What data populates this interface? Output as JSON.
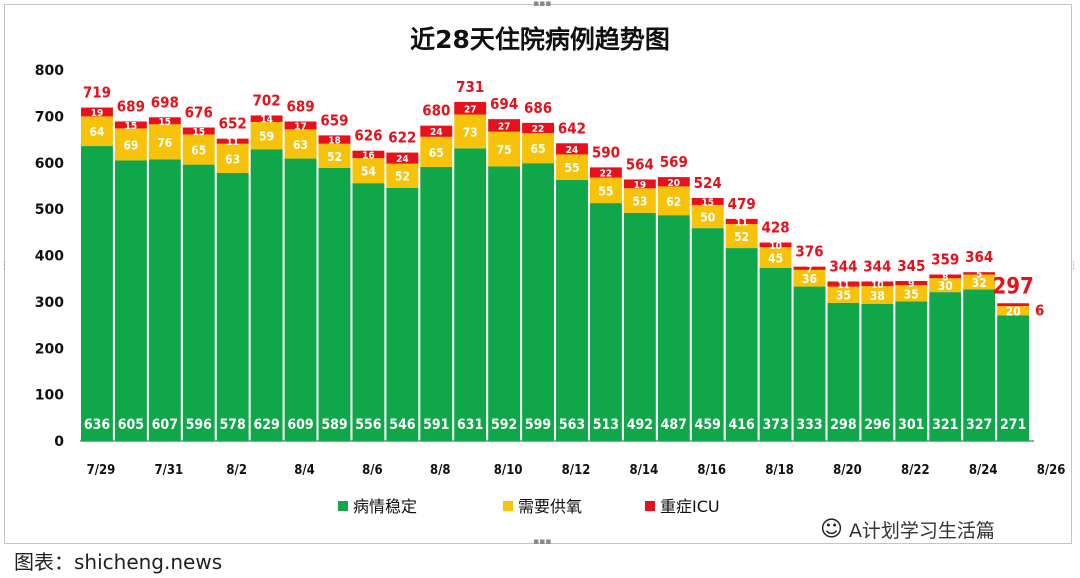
{
  "chart_data": {
    "type": "bar",
    "title": "近28天住院病例趋势图",
    "categories": [
      "7/29",
      "7/30",
      "7/31",
      "8/1",
      "8/2",
      "8/3",
      "8/4",
      "8/5",
      "8/6",
      "8/7",
      "8/8",
      "8/9",
      "8/10",
      "8/11",
      "8/12",
      "8/13",
      "8/14",
      "8/15",
      "8/16",
      "8/17",
      "8/18",
      "8/19",
      "8/20",
      "8/21",
      "8/22",
      "8/23",
      "8/24",
      "8/25",
      "8/26"
    ],
    "x_tick_labels": [
      "7/29",
      "7/31",
      "8/2",
      "8/4",
      "8/6",
      "8/8",
      "8/10",
      "8/12",
      "8/14",
      "8/16",
      "8/18",
      "8/20",
      "8/22",
      "8/24",
      "8/26"
    ],
    "stacked": true,
    "series": [
      {
        "name": "病情稳定",
        "color": "#10a64a",
        "values": [
          636,
          605,
          607,
          596,
          578,
          629,
          609,
          589,
          556,
          546,
          591,
          631,
          592,
          599,
          563,
          513,
          492,
          487,
          459,
          416,
          373,
          333,
          298,
          296,
          301,
          321,
          327,
          271,
          null
        ]
      },
      {
        "name": "需要供氧",
        "color": "#f7c20a",
        "values": [
          64,
          69,
          76,
          65,
          63,
          59,
          63,
          52,
          54,
          52,
          65,
          73,
          75,
          65,
          55,
          55,
          53,
          62,
          50,
          52,
          45,
          36,
          35,
          38,
          35,
          30,
          32,
          20,
          null
        ]
      },
      {
        "name": "重症ICU",
        "color": "#e8101a",
        "values": [
          19,
          15,
          15,
          15,
          11,
          14,
          17,
          18,
          16,
          24,
          24,
          27,
          27,
          22,
          24,
          22,
          19,
          20,
          15,
          11,
          10,
          7,
          11,
          10,
          9,
          8,
          5,
          6,
          null
        ]
      }
    ],
    "totals": [
      719,
      689,
      698,
      676,
      652,
      702,
      689,
      659,
      626,
      622,
      680,
      731,
      694,
      686,
      642,
      590,
      564,
      569,
      524,
      479,
      428,
      376,
      344,
      344,
      345,
      359,
      364,
      297,
      null
    ],
    "ylim": [
      0,
      800
    ],
    "yticks": [
      0,
      100,
      200,
      300,
      400,
      500,
      600,
      700,
      800
    ],
    "grid": false,
    "legend_position": "bottom"
  },
  "watermark_text": "A计划学习生活篇",
  "footer_text": "图表：shicheng.news"
}
